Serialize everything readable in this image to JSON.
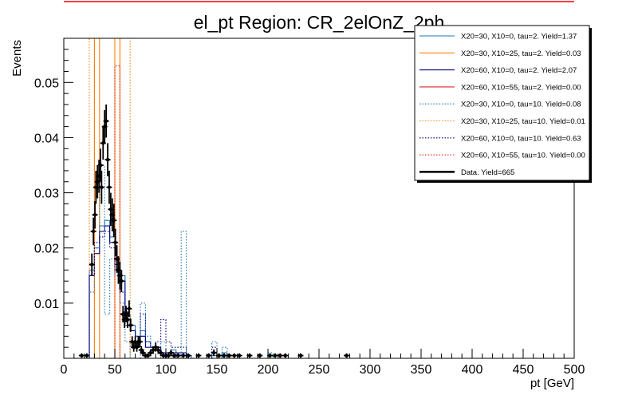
{
  "chart_data": {
    "type": "histogram",
    "title": "el_pt Region: CR_2elOnZ_2ph",
    "xlabel": "pt [GeV]",
    "ylabel": "Events",
    "xlim": [
      0,
      500
    ],
    "ylim": [
      0,
      0.058
    ],
    "x_ticks": [
      0,
      50,
      100,
      150,
      200,
      250,
      300,
      350,
      400,
      450,
      500
    ],
    "y_ticks": [
      0.01,
      0.02,
      0.03,
      0.04,
      0.05
    ],
    "grid": false,
    "legend_position": "top-right",
    "bin_width": 5,
    "series": [
      {
        "name": "X20=30, X10=0, tau=2. Yield=1.37",
        "color": "#1f77b4",
        "style": "solid",
        "bins": [
          [
            25,
            0.016
          ],
          [
            30,
            0.02
          ],
          [
            35,
            0.024
          ],
          [
            40,
            0.025
          ],
          [
            45,
            0.022
          ],
          [
            50,
            0.018
          ],
          [
            55,
            0.015
          ],
          [
            60,
            0.008
          ],
          [
            65,
            0.006
          ],
          [
            70,
            0.004
          ],
          [
            75,
            0.005
          ],
          [
            80,
            0.003
          ],
          [
            85,
            0.002
          ],
          [
            90,
            0.002
          ],
          [
            95,
            0.001
          ],
          [
            100,
            0.001
          ],
          [
            105,
            0.0015
          ],
          [
            110,
            0.001
          ],
          [
            115,
            0.001
          ],
          [
            120,
            0.0005
          ],
          [
            145,
            0.0005
          ],
          [
            155,
            0.001
          ]
        ]
      },
      {
        "name": "X20=30, X10=25, tau=2. Yield=0.03",
        "color": "#ff7f0e",
        "style": "solid",
        "bins": [
          [
            30,
            0.058
          ],
          [
            50,
            0.058
          ]
        ]
      },
      {
        "name": "X20=60, X10=0, tau=2. Yield=2.07",
        "color": "#000080",
        "style": "solid",
        "bins": [
          [
            25,
            0.015
          ],
          [
            30,
            0.019
          ],
          [
            35,
            0.023
          ],
          [
            40,
            0.024
          ],
          [
            45,
            0.021
          ],
          [
            50,
            0.017
          ],
          [
            55,
            0.014
          ],
          [
            60,
            0.007
          ],
          [
            65,
            0.005
          ],
          [
            70,
            0.003
          ],
          [
            75,
            0.004
          ],
          [
            80,
            0.002
          ],
          [
            85,
            0.002
          ],
          [
            90,
            0.002
          ],
          [
            95,
            0.001
          ],
          [
            100,
            0.001
          ],
          [
            105,
            0.001
          ],
          [
            110,
            0.001
          ],
          [
            115,
            0.001
          ]
        ]
      },
      {
        "name": "X20=60, X10=55, tau=2. Yield=0.00",
        "color": "#d62728",
        "style": "solid",
        "bins": []
      },
      {
        "name": "X20=30, X10=0, tau=10. Yield=0.08",
        "color": "#1f77b4",
        "style": "dotted",
        "bins": [
          [
            25,
            0.012
          ],
          [
            30,
            0.02
          ],
          [
            35,
            0.035
          ],
          [
            40,
            0.008
          ],
          [
            45,
            0.018
          ],
          [
            50,
            0.015
          ],
          [
            55,
            0.01
          ],
          [
            60,
            0.003
          ],
          [
            75,
            0.01
          ],
          [
            80,
            0.004
          ],
          [
            95,
            0.003
          ],
          [
            115,
            0.023
          ],
          [
            145,
            0.003
          ],
          [
            155,
            0.002
          ],
          [
            200,
            0.001
          ]
        ]
      },
      {
        "name": "X20=30, X10=25, tau=10. Yield=0.01",
        "color": "#ff7f0e",
        "style": "dotted",
        "bins": [
          [
            25,
            0.058
          ],
          [
            55,
            0.058
          ],
          [
            60,
            0.058
          ]
        ]
      },
      {
        "name": "X20=60, X10=0, tau=10. Yield=0.63",
        "color": "#000080",
        "style": "dotted",
        "bins": [
          [
            25,
            0.015
          ],
          [
            30,
            0.021
          ],
          [
            35,
            0.022
          ],
          [
            40,
            0.023
          ],
          [
            45,
            0.02
          ],
          [
            50,
            0.016
          ],
          [
            55,
            0.012
          ],
          [
            60,
            0.006
          ],
          [
            65,
            0.005
          ],
          [
            70,
            0.004
          ],
          [
            75,
            0.008
          ],
          [
            80,
            0.003
          ],
          [
            85,
            0.002
          ],
          [
            90,
            0.003
          ],
          [
            95,
            0.007
          ],
          [
            100,
            0.003
          ],
          [
            105,
            0.002
          ],
          [
            110,
            0.002
          ],
          [
            115,
            0.002
          ],
          [
            145,
            0.002
          ]
        ]
      },
      {
        "name": "X20=60, X10=55, tau=10. Yield=0.00",
        "color": "#d62728",
        "style": "dotted",
        "bins": [
          [
            50,
            0.053
          ]
        ]
      }
    ],
    "data": {
      "name": "Data. Yield=665",
      "color": "#000000",
      "points": [
        [
          17.5,
          0.0005,
          0.0004
        ],
        [
          22.5,
          0.0005,
          0.0004
        ],
        [
          27.5,
          0.017,
          0.002
        ],
        [
          29,
          0.023,
          0.0025
        ],
        [
          30.5,
          0.026,
          0.0025
        ],
        [
          31.5,
          0.031,
          0.003
        ],
        [
          33,
          0.032,
          0.003
        ],
        [
          34.5,
          0.033,
          0.003
        ],
        [
          36,
          0.035,
          0.003
        ],
        [
          37,
          0.031,
          0.003
        ],
        [
          38.5,
          0.039,
          0.003
        ],
        [
          40,
          0.042,
          0.003
        ],
        [
          41.5,
          0.043,
          0.003
        ],
        [
          43,
          0.036,
          0.003
        ],
        [
          44.5,
          0.031,
          0.003
        ],
        [
          46,
          0.027,
          0.003
        ],
        [
          47.5,
          0.026,
          0.003
        ],
        [
          49,
          0.025,
          0.003
        ],
        [
          50.5,
          0.021,
          0.0025
        ],
        [
          52,
          0.018,
          0.0025
        ],
        [
          53.5,
          0.016,
          0.0025
        ],
        [
          55,
          0.015,
          0.0025
        ],
        [
          56.5,
          0.014,
          0.002
        ],
        [
          58,
          0.008,
          0.0015
        ],
        [
          59.5,
          0.007,
          0.0015
        ],
        [
          61,
          0.008,
          0.0015
        ],
        [
          62.5,
          0.007,
          0.0015
        ],
        [
          64,
          0.009,
          0.0015
        ],
        [
          65.5,
          0.006,
          0.0012
        ],
        [
          67,
          0.003,
          0.001
        ],
        [
          68.5,
          0.002,
          0.0008
        ],
        [
          70,
          0.003,
          0.001
        ],
        [
          71.5,
          0.002,
          0.0008
        ],
        [
          73,
          0.003,
          0.001
        ],
        [
          74.5,
          0.003,
          0.001
        ],
        [
          76,
          0.0015,
          0.0007
        ],
        [
          77.5,
          0.001,
          0.0006
        ],
        [
          80,
          0.0005,
          0.0004
        ],
        [
          82.5,
          0.0005,
          0.0004
        ],
        [
          85,
          0.001,
          0.0006
        ],
        [
          87.5,
          0.0015,
          0.0007
        ],
        [
          90,
          0.002,
          0.0008
        ],
        [
          92.5,
          0.0015,
          0.0007
        ],
        [
          95,
          0.001,
          0.0006
        ],
        [
          97.5,
          0.0005,
          0.0004
        ],
        [
          100,
          0.0005,
          0.0004
        ],
        [
          102.5,
          0.0005,
          0.0004
        ],
        [
          105,
          0.001,
          0.0006
        ],
        [
          108,
          0.0005,
          0.0004
        ],
        [
          112,
          0.0005,
          0.0004
        ],
        [
          117,
          0.0005,
          0.0004
        ],
        [
          122,
          0.0005,
          0.0004
        ],
        [
          132,
          0.0005,
          0.0004
        ],
        [
          142,
          0.0005,
          0.0004
        ],
        [
          147,
          0.001,
          0.0006
        ],
        [
          152,
          0.0005,
          0.0004
        ],
        [
          157,
          0.0005,
          0.0004
        ],
        [
          162,
          0.0005,
          0.0004
        ],
        [
          167,
          0.0005,
          0.0004
        ],
        [
          172,
          0.0005,
          0.0004
        ],
        [
          182,
          0.0005,
          0.0004
        ],
        [
          192,
          0.0005,
          0.0004
        ],
        [
          202,
          0.0005,
          0.0004
        ],
        [
          207,
          0.0005,
          0.0004
        ],
        [
          212,
          0.0005,
          0.0004
        ],
        [
          217,
          0.0005,
          0.0004
        ],
        [
          232,
          0.0005,
          0.0004
        ],
        [
          277,
          0.0005,
          0.0004
        ]
      ]
    }
  }
}
